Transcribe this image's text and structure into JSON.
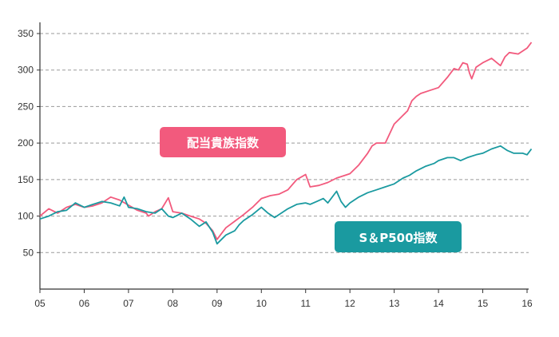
{
  "chart_data": {
    "type": "line",
    "title": "",
    "xlabel": "",
    "ylabel": "",
    "x_ticks": [
      "05",
      "06",
      "07",
      "08",
      "09",
      "10",
      "11",
      "12",
      "13",
      "14",
      "15",
      "16"
    ],
    "xlim": [
      2005,
      2016
    ],
    "y_ticks": [
      50,
      100,
      150,
      200,
      250,
      300,
      350
    ],
    "ylim": [
      0,
      350
    ],
    "grid": "horizontal-dashed",
    "legend": "inline-labels",
    "series": [
      {
        "name": "配当貴族指数",
        "color": "#f25a7d",
        "points": [
          [
            2005.0,
            100
          ],
          [
            2005.2,
            110
          ],
          [
            2005.4,
            104
          ],
          [
            2005.6,
            112
          ],
          [
            2005.8,
            116
          ],
          [
            2006.0,
            112
          ],
          [
            2006.2,
            114
          ],
          [
            2006.4,
            118
          ],
          [
            2006.6,
            126
          ],
          [
            2006.8,
            122
          ],
          [
            2007.0,
            115
          ],
          [
            2007.2,
            108
          ],
          [
            2007.4,
            104
          ],
          [
            2007.45,
            100
          ],
          [
            2007.6,
            106
          ],
          [
            2007.75,
            110
          ],
          [
            2007.9,
            125
          ],
          [
            2008.0,
            106
          ],
          [
            2008.2,
            104
          ],
          [
            2008.4,
            100
          ],
          [
            2008.6,
            96
          ],
          [
            2008.75,
            90
          ],
          [
            2008.9,
            80
          ],
          [
            2009.0,
            68
          ],
          [
            2009.2,
            84
          ],
          [
            2009.4,
            93
          ],
          [
            2009.6,
            102
          ],
          [
            2009.8,
            112
          ],
          [
            2010.0,
            124
          ],
          [
            2010.2,
            128
          ],
          [
            2010.4,
            130
          ],
          [
            2010.6,
            136
          ],
          [
            2010.8,
            150
          ],
          [
            2011.0,
            157
          ],
          [
            2011.1,
            140
          ],
          [
            2011.3,
            142
          ],
          [
            2011.5,
            146
          ],
          [
            2011.7,
            152
          ],
          [
            2011.9,
            156
          ],
          [
            2012.0,
            158
          ],
          [
            2012.2,
            170
          ],
          [
            2012.4,
            186
          ],
          [
            2012.5,
            196
          ],
          [
            2012.6,
            200
          ],
          [
            2012.8,
            200
          ],
          [
            2013.0,
            226
          ],
          [
            2013.1,
            232
          ],
          [
            2013.2,
            238
          ],
          [
            2013.3,
            244
          ],
          [
            2013.4,
            258
          ],
          [
            2013.5,
            264
          ],
          [
            2013.6,
            268
          ],
          [
            2013.8,
            272
          ],
          [
            2014.0,
            276
          ],
          [
            2014.2,
            290
          ],
          [
            2014.35,
            302
          ],
          [
            2014.45,
            300
          ],
          [
            2014.55,
            310
          ],
          [
            2014.65,
            308
          ],
          [
            2014.7,
            296
          ],
          [
            2014.75,
            288
          ],
          [
            2014.85,
            304
          ],
          [
            2015.0,
            310
          ],
          [
            2015.2,
            316
          ],
          [
            2015.4,
            306
          ],
          [
            2015.5,
            318
          ],
          [
            2015.6,
            324
          ],
          [
            2015.8,
            322
          ],
          [
            2016.0,
            330
          ],
          [
            2016.1,
            338
          ]
        ]
      },
      {
        "name": "S＆P500指数",
        "color": "#1a9aa0",
        "points": [
          [
            2005.0,
            96
          ],
          [
            2005.2,
            100
          ],
          [
            2005.4,
            106
          ],
          [
            2005.6,
            108
          ],
          [
            2005.8,
            118
          ],
          [
            2006.0,
            112
          ],
          [
            2006.2,
            116
          ],
          [
            2006.4,
            120
          ],
          [
            2006.6,
            118
          ],
          [
            2006.8,
            114
          ],
          [
            2006.9,
            126
          ],
          [
            2007.0,
            112
          ],
          [
            2007.2,
            110
          ],
          [
            2007.4,
            106
          ],
          [
            2007.6,
            104
          ],
          [
            2007.75,
            110
          ],
          [
            2007.9,
            100
          ],
          [
            2008.0,
            98
          ],
          [
            2008.2,
            104
          ],
          [
            2008.4,
            96
          ],
          [
            2008.6,
            86
          ],
          [
            2008.75,
            92
          ],
          [
            2008.9,
            78
          ],
          [
            2009.0,
            62
          ],
          [
            2009.2,
            74
          ],
          [
            2009.4,
            80
          ],
          [
            2009.5,
            88
          ],
          [
            2009.6,
            94
          ],
          [
            2009.8,
            102
          ],
          [
            2010.0,
            112
          ],
          [
            2010.15,
            104
          ],
          [
            2010.3,
            98
          ],
          [
            2010.45,
            104
          ],
          [
            2010.6,
            110
          ],
          [
            2010.8,
            116
          ],
          [
            2011.0,
            118
          ],
          [
            2011.1,
            116
          ],
          [
            2011.25,
            120
          ],
          [
            2011.4,
            124
          ],
          [
            2011.5,
            118
          ],
          [
            2011.7,
            134
          ],
          [
            2011.8,
            120
          ],
          [
            2011.9,
            112
          ],
          [
            2012.0,
            118
          ],
          [
            2012.2,
            126
          ],
          [
            2012.4,
            132
          ],
          [
            2012.6,
            136
          ],
          [
            2012.8,
            140
          ],
          [
            2013.0,
            144
          ],
          [
            2013.2,
            152
          ],
          [
            2013.35,
            156
          ],
          [
            2013.5,
            162
          ],
          [
            2013.7,
            168
          ],
          [
            2013.9,
            172
          ],
          [
            2014.0,
            176
          ],
          [
            2014.2,
            180
          ],
          [
            2014.35,
            180
          ],
          [
            2014.5,
            176
          ],
          [
            2014.65,
            180
          ],
          [
            2014.85,
            184
          ],
          [
            2015.0,
            186
          ],
          [
            2015.2,
            192
          ],
          [
            2015.4,
            196
          ],
          [
            2015.55,
            190
          ],
          [
            2015.7,
            186
          ],
          [
            2015.9,
            186
          ],
          [
            2016.0,
            184
          ],
          [
            2016.1,
            192
          ]
        ]
      }
    ]
  }
}
